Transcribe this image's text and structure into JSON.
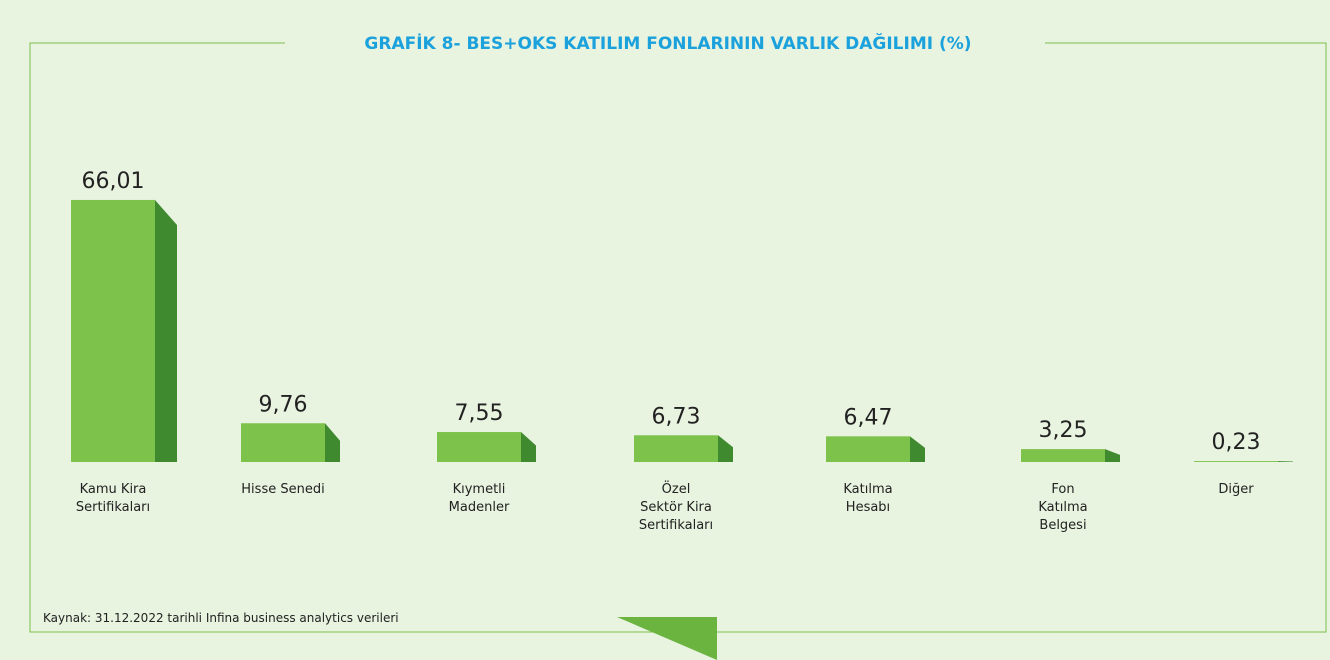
{
  "chart_data": {
    "type": "bar",
    "title": "GRAFİK 8- BES+OKS KATILIM FONLARININ VARLIK DAĞILIMI (%)",
    "categories": [
      "Kamu Kira\nSertifikaları",
      "Hisse Senedi",
      "Kıymetli\nMadenler",
      "Özel\nSektör Kira\nSertifikaları",
      "Katılma\nHesabı",
      "Fon\nKatılma\nBelgesi",
      "Diğer"
    ],
    "values": [
      66.01,
      9.76,
      7.55,
      6.73,
      6.47,
      3.25,
      0.23
    ],
    "value_labels": [
      "66,01",
      "9,76",
      "7,55",
      "6,73",
      "6,47",
      "3,25",
      "0,23"
    ],
    "color": "#7dc24b",
    "side_color": "#3f8a2e",
    "source": "Kaynak: 31.12.2022 tarihli Infina business analytics verileri"
  }
}
